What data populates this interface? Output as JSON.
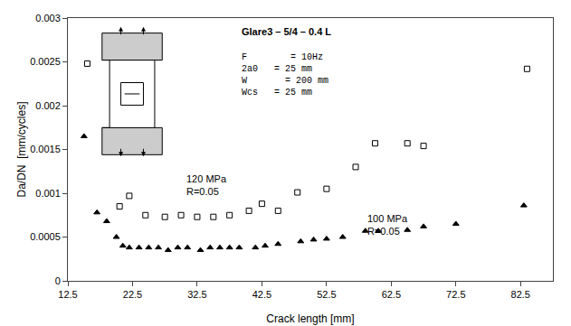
{
  "chart_data": {
    "type": "scatter",
    "xlabel": "Crack length [mm]",
    "ylabel": "Da/DN  [mm/cycles]",
    "xlim": [
      12.5,
      87.5
    ],
    "ylim": [
      0,
      0.003
    ],
    "xticks": [
      12.5,
      22.5,
      32.5,
      42.5,
      52.5,
      62.5,
      72.5,
      82.5
    ],
    "yticks": [
      0,
      0.0005,
      0.001,
      0.0015,
      0.002,
      0.0025,
      0.003
    ],
    "grid": false,
    "series": [
      {
        "marker": "open_square",
        "color": "#000000",
        "x": [
          15.5,
          20.5,
          22.0,
          24.5,
          27.5,
          30.0,
          32.5,
          35.0,
          37.5,
          40.5,
          42.5,
          45.0,
          48.0,
          52.5,
          57.0,
          60.0,
          65.0,
          67.5,
          83.5
        ],
        "values": [
          0.00248,
          0.00085,
          0.00097,
          0.00075,
          0.00073,
          0.00075,
          0.00073,
          0.00073,
          0.00075,
          0.0008,
          0.00088,
          0.0008,
          0.00101,
          0.00105,
          0.0013,
          0.00157,
          0.00157,
          0.00154,
          0.00242
        ]
      },
      {
        "marker": "triangle",
        "color": "#000000",
        "x": [
          15.0,
          17.0,
          18.5,
          20.0,
          21.0,
          22.0,
          23.5,
          25.0,
          26.5,
          28.0,
          29.5,
          31.0,
          33.0,
          34.5,
          36.0,
          37.5,
          39.0,
          41.5,
          43.0,
          45.0,
          48.5,
          50.5,
          52.5,
          55.0,
          58.5,
          60.5,
          65.0,
          67.5,
          72.5,
          83.0
        ],
        "values": [
          0.00165,
          0.00078,
          0.00068,
          0.0005,
          0.0004,
          0.00038,
          0.00038,
          0.00038,
          0.00038,
          0.00035,
          0.00038,
          0.00038,
          0.00035,
          0.00038,
          0.00038,
          0.00038,
          0.00038,
          0.00038,
          0.0004,
          0.00042,
          0.00045,
          0.00047,
          0.00048,
          0.0005,
          0.00057,
          0.00057,
          0.00058,
          0.00062,
          0.00065,
          0.00086
        ]
      }
    ],
    "annotations": [
      {
        "text": "Glare3 – 5/4 – 0.4 L"
      },
      {
        "lines": [
          "F        = 10Hz",
          "2a0   = 25 mm",
          "W       = 200 mm",
          "Wcs   = 25 mm"
        ]
      },
      {
        "text": "120 MPa\nR=0.05",
        "x": 30.5,
        "y": 0.00125
      },
      {
        "text": "100 MPa\nR=0.05",
        "x": 58.5,
        "y": 0.00079
      }
    ]
  }
}
